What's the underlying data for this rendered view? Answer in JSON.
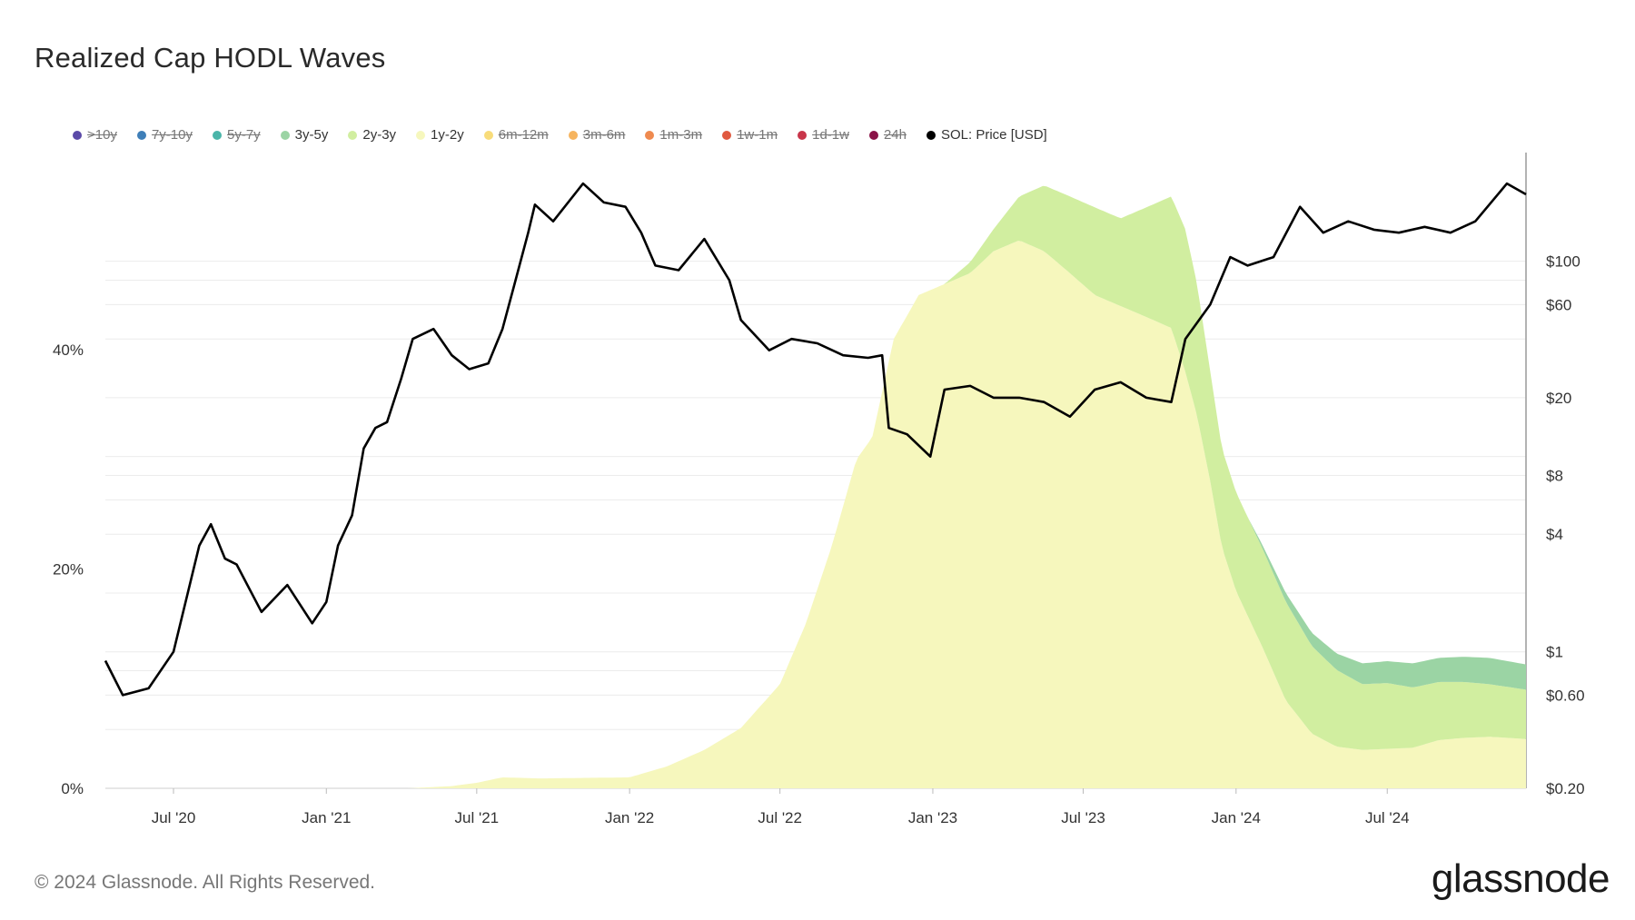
{
  "title": "Realized Cap HODL Waves",
  "legend": [
    {
      "label": ">10y",
      "color": "#5b4aa8",
      "hidden": true
    },
    {
      "label": "7y-10y",
      "color": "#3f7fb8",
      "hidden": true
    },
    {
      "label": "5y-7y",
      "color": "#4ab5a9",
      "hidden": true
    },
    {
      "label": "3y-5y",
      "color": "#9bd4a4",
      "hidden": false
    },
    {
      "label": "2y-3y",
      "color": "#d1eea0",
      "hidden": false
    },
    {
      "label": "1y-2y",
      "color": "#f6f7bd",
      "hidden": false
    },
    {
      "label": "6m-12m",
      "color": "#f8dc7a",
      "hidden": true
    },
    {
      "label": "3m-6m",
      "color": "#f6b45f",
      "hidden": true
    },
    {
      "label": "1m-3m",
      "color": "#ef8a4f",
      "hidden": true
    },
    {
      "label": "1w-1m",
      "color": "#e0593f",
      "hidden": true
    },
    {
      "label": "1d-1w",
      "color": "#c8354a",
      "hidden": true
    },
    {
      "label": "24h",
      "color": "#8a1247",
      "hidden": true
    },
    {
      "label": "SOL: Price [USD]",
      "color": "#000000",
      "hidden": false
    }
  ],
  "footer": "© 2024 Glassnode. All Rights Reserved.",
  "brand": "glassnode",
  "chart_data": {
    "type": "area",
    "x_ticks": [
      "Jul '20",
      "Jan '21",
      "Jul '21",
      "Jan '22",
      "Jul '22",
      "Jan '23",
      "Jul '23",
      "Jan '24",
      "Jul '24"
    ],
    "x_range": [
      "2020-04-10",
      "2024-12-15"
    ],
    "y_left_ticks": [
      "0%",
      "20%",
      "40%"
    ],
    "y_left_range": [
      0,
      58
    ],
    "y_right_ticks": [
      "$100",
      "$60",
      "$20",
      "$8",
      "$4",
      "$1",
      "$0.60",
      "$0.20"
    ],
    "y_right_tick_values": [
      100,
      60,
      20,
      8,
      4,
      1,
      0.6,
      0.2
    ],
    "y_right_scale": "log",
    "y_right_range": [
      0.2,
      360
    ],
    "series": [
      {
        "name": "1y-2y",
        "color": "#f6f7bd",
        "x": [
          "2020-04-10",
          "2021-04-10",
          "2021-06-01",
          "2021-07-01",
          "2021-08-01",
          "2021-09-15",
          "2022-01-01",
          "2022-02-15",
          "2022-04-01",
          "2022-05-15",
          "2022-07-01",
          "2022-08-01",
          "2022-09-01",
          "2022-10-01",
          "2022-10-20",
          "2022-11-15",
          "2022-12-15",
          "2023-01-15",
          "2023-02-15",
          "2023-03-15",
          "2023-04-15",
          "2023-05-15",
          "2023-06-15",
          "2023-07-15",
          "2023-08-15",
          "2023-09-15",
          "2023-10-15",
          "2023-11-01",
          "2023-11-15",
          "2023-12-01",
          "2023-12-15",
          "2024-01-01",
          "2024-02-01",
          "2024-03-01",
          "2024-04-01",
          "2024-05-01",
          "2024-06-01",
          "2024-07-01",
          "2024-08-01",
          "2024-09-01",
          "2024-10-01",
          "2024-11-01",
          "2024-12-15"
        ],
        "values": [
          0,
          0,
          0.2,
          0.5,
          1.0,
          0.9,
          1.0,
          2.0,
          3.5,
          5.5,
          9.5,
          15,
          22,
          30,
          32,
          41,
          45,
          46,
          47,
          49,
          50,
          49,
          47,
          45,
          44,
          43,
          42,
          38,
          34,
          28,
          22,
          18,
          13,
          8,
          5,
          3.8,
          3.5,
          3.6,
          3.7,
          4.4,
          4.6,
          4.7,
          4.5
        ]
      },
      {
        "name": "2y-3y",
        "color": "#d1eea0",
        "x": [
          "2020-04-10",
          "2022-08-01",
          "2022-09-01",
          "2022-10-01",
          "2022-10-20",
          "2022-11-15",
          "2022-12-15",
          "2023-01-15",
          "2023-02-15",
          "2023-03-15",
          "2023-04-15",
          "2023-05-15",
          "2023-06-15",
          "2023-07-15",
          "2023-08-15",
          "2023-09-15",
          "2023-10-15",
          "2023-11-01",
          "2023-11-15",
          "2023-12-01",
          "2023-12-15",
          "2024-01-01",
          "2024-02-01",
          "2024-03-01",
          "2024-04-01",
          "2024-05-01",
          "2024-06-01",
          "2024-07-01",
          "2024-08-01",
          "2024-09-01",
          "2024-10-01",
          "2024-11-01",
          "2024-12-15"
        ],
        "values": [
          0,
          0,
          0,
          0,
          0,
          0,
          0,
          0,
          1,
          2,
          4,
          6,
          7,
          8,
          8,
          10,
          12,
          13,
          12,
          10,
          9,
          9,
          9,
          9,
          8,
          7,
          6,
          6,
          5.5,
          5.3,
          5.1,
          4.8,
          4.5
        ]
      },
      {
        "name": "3y-5y",
        "color": "#9bd4a4",
        "x": [
          "2020-04-10",
          "2024-01-15",
          "2024-02-01",
          "2024-03-01",
          "2024-04-01",
          "2024-05-01",
          "2024-06-01",
          "2024-07-01",
          "2024-08-01",
          "2024-09-01",
          "2024-10-01",
          "2024-11-01",
          "2024-12-15"
        ],
        "values": [
          0,
          0,
          0.3,
          0.8,
          1.2,
          1.5,
          1.9,
          2.0,
          2.2,
          2.2,
          2.3,
          2.4,
          2.3
        ]
      },
      {
        "name": "SOL: Price [USD]",
        "color": "#000000",
        "axis": "right",
        "x": [
          "2020-04-10",
          "2020-05-01",
          "2020-06-01",
          "2020-07-01",
          "2020-08-01",
          "2020-08-15",
          "2020-09-01",
          "2020-09-15",
          "2020-10-15",
          "2020-11-15",
          "2020-12-15",
          "2021-01-01",
          "2021-01-15",
          "2021-02-01",
          "2021-02-15",
          "2021-03-01",
          "2021-03-15",
          "2021-04-01",
          "2021-04-15",
          "2021-05-10",
          "2021-06-01",
          "2021-06-22",
          "2021-07-15",
          "2021-08-01",
          "2021-08-15",
          "2021-09-01",
          "2021-09-09",
          "2021-10-01",
          "2021-11-06",
          "2021-12-01",
          "2021-12-27",
          "2022-01-15",
          "2022-02-01",
          "2022-03-01",
          "2022-04-01",
          "2022-05-01",
          "2022-05-15",
          "2022-06-18",
          "2022-07-15",
          "2022-08-15",
          "2022-09-15",
          "2022-10-15",
          "2022-11-01",
          "2022-11-09",
          "2022-12-01",
          "2022-12-29",
          "2023-01-15",
          "2023-02-15",
          "2023-03-15",
          "2023-04-15",
          "2023-05-15",
          "2023-06-15",
          "2023-07-15",
          "2023-08-15",
          "2023-09-15",
          "2023-10-15",
          "2023-11-01",
          "2023-12-01",
          "2023-12-25",
          "2024-01-15",
          "2024-02-15",
          "2024-03-18",
          "2024-04-15",
          "2024-05-15",
          "2024-06-15",
          "2024-07-15",
          "2024-08-15",
          "2024-09-15",
          "2024-10-15",
          "2024-11-22",
          "2024-12-15"
        ],
        "values": [
          0.9,
          0.6,
          0.65,
          1.0,
          3.5,
          4.5,
          3.0,
          2.8,
          1.6,
          2.2,
          1.4,
          1.8,
          3.5,
          5.0,
          11,
          14,
          15,
          25,
          40,
          45,
          33,
          28,
          30,
          45,
          75,
          140,
          195,
          160,
          250,
          200,
          190,
          140,
          95,
          90,
          130,
          80,
          50,
          35,
          40,
          38,
          33,
          32,
          33,
          14,
          13,
          10,
          22,
          23,
          20,
          20,
          19,
          16,
          22,
          24,
          20,
          19,
          40,
          60,
          105,
          95,
          105,
          190,
          140,
          160,
          145,
          140,
          150,
          140,
          160,
          250,
          220
        ]
      }
    ],
    "grid": "horizontal",
    "legend_position": "top"
  }
}
